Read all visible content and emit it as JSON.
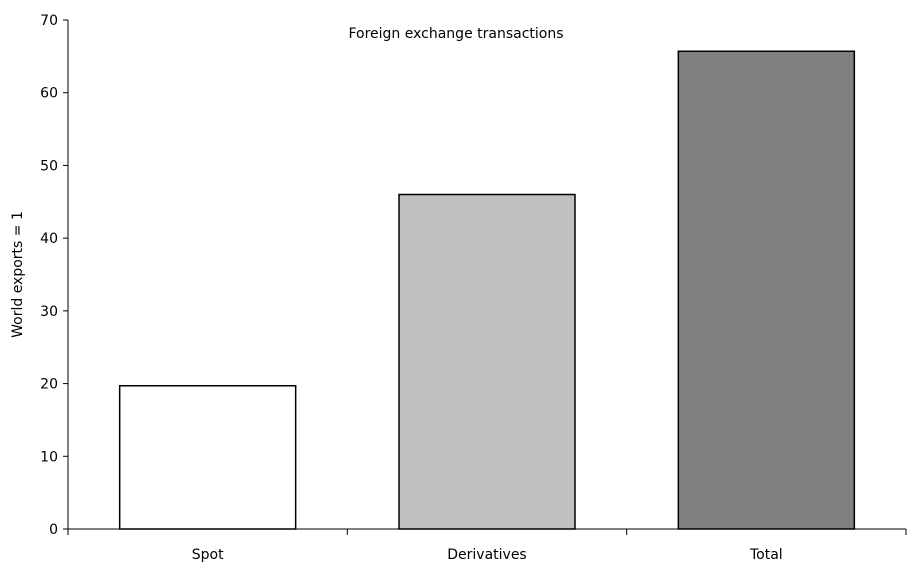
{
  "chart_data": {
    "type": "bar",
    "title": "Foreign exchange transactions",
    "xlabel": "",
    "ylabel": "World exports = 1",
    "categories": [
      "Spot",
      "Derivatives",
      "Total"
    ],
    "values": [
      19.7,
      46.0,
      65.7
    ],
    "colors": [
      "#ffffff",
      "#c0c0c0",
      "#808080"
    ],
    "ylim": [
      0,
      70
    ],
    "yticks": [
      0,
      10,
      20,
      30,
      40,
      50,
      60,
      70
    ],
    "grid": false,
    "legend": "none"
  }
}
